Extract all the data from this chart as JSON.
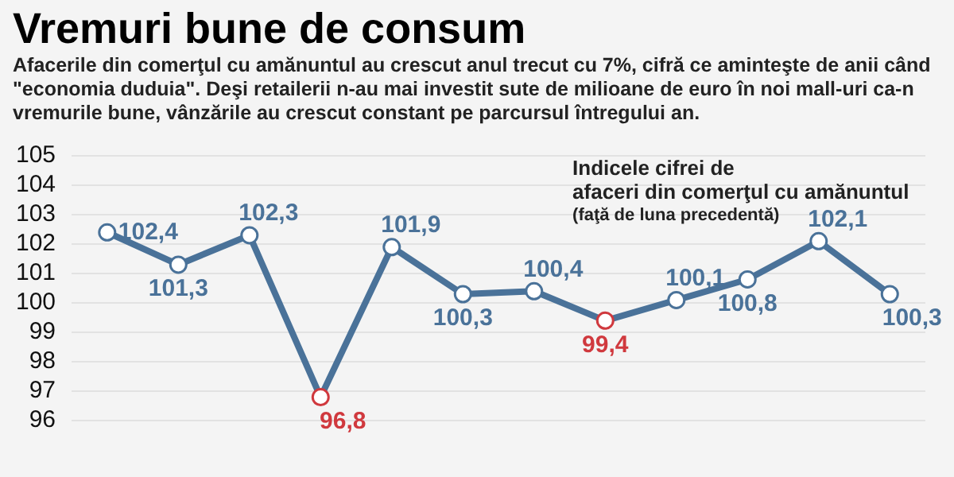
{
  "chart_data": {
    "type": "line",
    "title": "Vremuri bune de consum",
    "subtitle": "Afacerile din comerţul cu amănuntul au crescut anul trecut cu 7%, cifră ce aminteşte de anii când \"economia duduia\". Deşi retailerii n-au mai investit sute de milioane de euro în noi mall-uri ca-n vremurile bune, vânzările au crescut constant pe parcursul întregului an.",
    "annotations": [
      "Indicele cifrei de afaceri din comerţul cu amănuntul",
      "(faţă de luna precedentă)"
    ],
    "categories": [
      null,
      null,
      null,
      null,
      null,
      null,
      null,
      null,
      null,
      null,
      null,
      null
    ],
    "series": [
      {
        "color": "#4a7299",
        "values": [
          102.4,
          101.3,
          102.3,
          96.8,
          101.9,
          100.3,
          100.4,
          99.4,
          100.1,
          100.8,
          102.1,
          100.3
        ],
        "colors": [
          "#4a7299",
          "#4a7299",
          "#4a7299",
          "#d0393e",
          "#4a7299",
          "#4a7299",
          "#4a7299",
          "#d0393e",
          "#4a7299",
          "#4a7299",
          "#4a7299",
          "#4a7299"
        ],
        "value_labels": [
          "102,4",
          "101,3",
          "102,3",
          "96,8",
          "101,9",
          "100,3",
          "100,4",
          "99,4",
          "100,1",
          "100,8",
          "102,1",
          "100,3"
        ]
      }
    ],
    "ylim": [
      96,
      105
    ],
    "yticks": [
      96,
      97,
      98,
      99,
      100,
      101,
      102,
      103,
      104,
      105
    ],
    "grid": "y",
    "marker": "circle",
    "line_style": "solid",
    "legend": false
  }
}
